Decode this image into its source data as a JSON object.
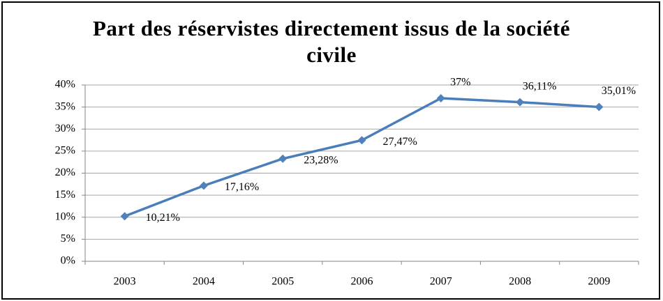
{
  "chart_data": {
    "type": "line",
    "title": "Part des réservistes directement issus de la société civile",
    "categories": [
      "2003",
      "2004",
      "2005",
      "2006",
      "2007",
      "2008",
      "2009"
    ],
    "series": [
      {
        "name": "Part",
        "color": "#4a7ebb",
        "values": [
          10.21,
          17.16,
          23.28,
          27.47,
          37,
          36.11,
          35.01
        ],
        "value_labels": [
          "10,21%",
          "17,16%",
          "23,28%",
          "27,47%",
          "37%",
          "36,11%",
          "35,01%"
        ]
      }
    ],
    "ylim": [
      0,
      40
    ],
    "yticks": [
      {
        "value": 0,
        "label": "0%"
      },
      {
        "value": 5,
        "label": "5%"
      },
      {
        "value": 10,
        "label": "10%"
      },
      {
        "value": 15,
        "label": "15%"
      },
      {
        "value": 20,
        "label": "20%"
      },
      {
        "value": 25,
        "label": "25%"
      },
      {
        "value": 30,
        "label": "30%"
      },
      {
        "value": 35,
        "label": "35%"
      },
      {
        "value": 40,
        "label": "40%"
      }
    ],
    "grid": true
  }
}
